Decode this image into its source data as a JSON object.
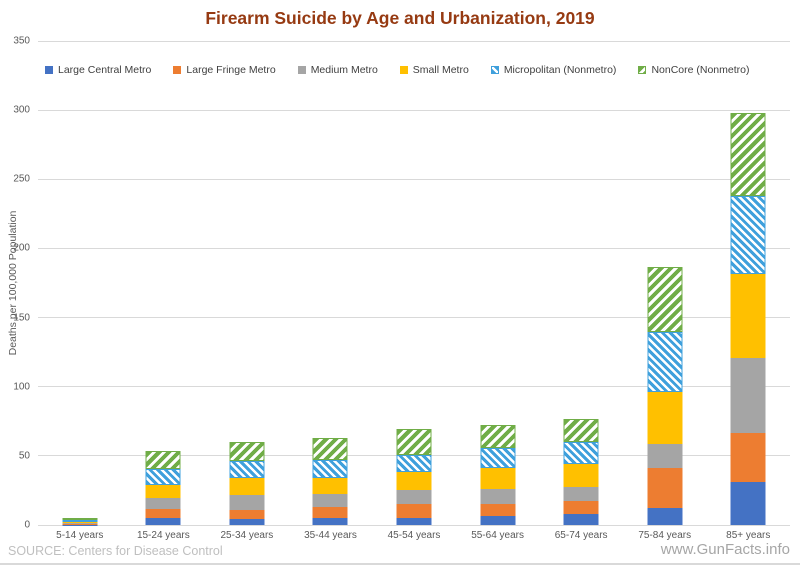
{
  "title": "Firearm Suicide by Age and Urbanization, 2019",
  "source": "SOURCE: Centers for Disease Control",
  "watermark": "www.GunFacts.info",
  "colors": {
    "title_text": "#963A12",
    "axis_text": "#595959",
    "gridline": "#D9D9D9",
    "legend_text": "#404040",
    "source_text": "#BFBFBF",
    "watermark_text": "#A6A6A6"
  },
  "chart_data": {
    "type": "bar",
    "stacked": true,
    "title": "Firearm Suicide by Age and Urbanization, 2019",
    "xlabel": "",
    "ylabel": "Deaths per 100,000 Population",
    "ylim": [
      0,
      350
    ],
    "yticks": [
      0,
      50,
      100,
      150,
      200,
      250,
      300,
      350
    ],
    "grid": true,
    "legend_position": "inside-top-left",
    "categories": [
      "5-14 years",
      "15-24 years",
      "25-34 years",
      "35-44 years",
      "45-54 years",
      "55-64 years",
      "65-74 years",
      "75-84 years",
      "85+ years"
    ],
    "series": [
      {
        "name": "Large Central Metro",
        "color": "#4472C4",
        "pattern": "solid",
        "values": [
          0.3,
          5.3,
          4.1,
          4.8,
          5.3,
          6.5,
          8.2,
          12.1,
          31.3
        ]
      },
      {
        "name": "Large Fringe Metro",
        "color": "#ED7D31",
        "pattern": "solid",
        "values": [
          0.5,
          6.3,
          6.7,
          8.0,
          9.6,
          8.4,
          9.3,
          28.8,
          35.3
        ]
      },
      {
        "name": "Medium Metro",
        "color": "#A5A5A5",
        "pattern": "solid",
        "values": [
          0.5,
          7.7,
          10.6,
          9.4,
          10.2,
          10.9,
          10.2,
          17.4,
          54.5
        ]
      },
      {
        "name": "Small Metro",
        "color": "#FFC000",
        "pattern": "solid",
        "values": [
          0.7,
          9.8,
          12.8,
          12.0,
          13.4,
          15.6,
          16.1,
          37.9,
          60.1
        ]
      },
      {
        "name": "Micropolitan (Nonmetro)",
        "color": "#3FA0DC",
        "pattern": "hatch-up",
        "values": [
          1.2,
          11.1,
          12.2,
          12.7,
          12.5,
          14.0,
          16.3,
          43.4,
          56.6
        ]
      },
      {
        "name": "NonCore (Nonmetro)",
        "color": "#70AD47",
        "pattern": "hatch-down",
        "values": [
          0.8,
          13.2,
          13.7,
          16.1,
          18.8,
          17.0,
          16.9,
          46.9,
          59.9
        ]
      }
    ],
    "totals": [
      4.0,
      53.4,
      60.1,
      63.0,
      69.8,
      72.4,
      77.0,
      186.5,
      297.7
    ]
  }
}
